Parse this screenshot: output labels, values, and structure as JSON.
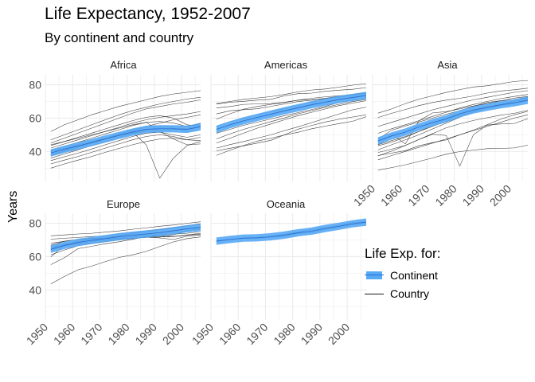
{
  "title": "Life Expectancy, 1952-2007",
  "subtitle": "By continent and country",
  "colors": {
    "continent": "#56a9f5",
    "country": "#1a1a1a",
    "grid": "#ebebeb"
  },
  "chart_data": {
    "type": "line",
    "facets": [
      "Africa",
      "Americas",
      "Asia",
      "Europe",
      "Oceania"
    ],
    "ylabel": "Years",
    "xlabel": "",
    "x": [
      1952,
      1957,
      1962,
      1967,
      1972,
      1977,
      1982,
      1987,
      1992,
      1997,
      2002,
      2007
    ],
    "xlim": [
      1950,
      2007
    ],
    "ylim": [
      22,
      86
    ],
    "x_ticks": [
      "1950",
      "1960",
      "1970",
      "1980",
      "1990",
      "2000"
    ],
    "y_ticks": [
      "40",
      "60",
      "80"
    ],
    "legend": {
      "title": "Life Exp. for:",
      "continent_label": "Continent",
      "country_label": "Country",
      "position": "right"
    },
    "series": [
      {
        "name": "Africa",
        "continent": [
          39.1,
          41.3,
          43.3,
          45.3,
          47.5,
          49.6,
          51.6,
          53.3,
          53.6,
          53.6,
          53.3,
          54.8
        ],
        "countries": [
          [
            30.0,
            32.5,
            34.8,
            37.0,
            39.5,
            41.8,
            44.0,
            46.0,
            47.5,
            48.0,
            47.0,
            48.5
          ],
          [
            32.5,
            34.8,
            37.0,
            39.5,
            42.0,
            44.5,
            47.0,
            49.0,
            50.0,
            49.0,
            47.0,
            46.5
          ],
          [
            34.5,
            36.8,
            39.0,
            41.5,
            44.0,
            46.5,
            49.0,
            51.0,
            51.5,
            50.0,
            48.5,
            50.0
          ],
          [
            36.0,
            38.5,
            41.0,
            43.5,
            46.0,
            48.5,
            51.0,
            53.0,
            54.5,
            55.0,
            55.0,
            56.5
          ],
          [
            37.5,
            40.0,
            42.5,
            45.0,
            47.5,
            50.0,
            52.5,
            54.5,
            55.5,
            54.0,
            52.0,
            53.0
          ],
          [
            39.0,
            41.5,
            43.5,
            45.5,
            47.5,
            49.5,
            51.0,
            52.0,
            52.5,
            53.0,
            54.0,
            55.5
          ],
          [
            40.5,
            43.0,
            45.5,
            48.0,
            50.5,
            53.0,
            55.5,
            57.5,
            58.0,
            57.0,
            55.0,
            57.0
          ],
          [
            42.0,
            44.5,
            47.0,
            49.5,
            52.0,
            54.5,
            57.0,
            59.0,
            60.5,
            61.5,
            62.5,
            64.0
          ],
          [
            43.5,
            46.0,
            48.5,
            51.0,
            53.5,
            56.0,
            58.5,
            60.5,
            61.5,
            60.0,
            56.0,
            55.0
          ],
          [
            45.0,
            48.0,
            51.0,
            54.0,
            57.0,
            60.0,
            63.0,
            65.5,
            67.0,
            68.5,
            69.5,
            71.0
          ],
          [
            47.0,
            50.0,
            53.0,
            56.0,
            59.0,
            62.0,
            64.5,
            66.5,
            68.5,
            70.0,
            71.5,
            72.5
          ],
          [
            52.0,
            56.0,
            59.0,
            62.0,
            64.5,
            67.0,
            69.0,
            71.0,
            73.0,
            74.5,
            75.5,
            76.5
          ],
          [
            44.0,
            46.0,
            48.0,
            50.0,
            52.0,
            54.0,
            56.0,
            57.5,
            52.0,
            47.5,
            44.0,
            44.5
          ],
          [
            40.0,
            42.0,
            44.0,
            46.0,
            48.0,
            50.0,
            51.5,
            44.0,
            24.0,
            36.0,
            43.5,
            46.0
          ],
          [
            38.0,
            40.5,
            43.0,
            45.5,
            48.0,
            50.5,
            53.0,
            55.0,
            57.0,
            59.0,
            60.5,
            62.0
          ]
        ]
      },
      {
        "name": "Americas",
        "continent": [
          53.3,
          56.0,
          58.4,
          60.4,
          62.4,
          64.4,
          66.2,
          68.1,
          69.6,
          71.2,
          72.4,
          73.6
        ],
        "countries": [
          [
            37.6,
            40.7,
            43.6,
            46.2,
            48.0,
            49.9,
            51.5,
            53.6,
            55.2,
            56.7,
            58.1,
            60.9
          ],
          [
            40.4,
            41.9,
            43.4,
            45.0,
            46.7,
            50.0,
            53.4,
            55.6,
            57.7,
            59.3,
            60.7,
            62.0
          ],
          [
            42.0,
            44.1,
            46.0,
            48.0,
            50.0,
            52.5,
            54.8,
            57.3,
            59.9,
            62.5,
            65.0,
            66.6
          ],
          [
            47.5,
            50.5,
            53.3,
            55.6,
            57.9,
            60.1,
            62.6,
            64.5,
            66.5,
            68.3,
            69.9,
            71.2
          ],
          [
            50.9,
            53.3,
            55.7,
            57.6,
            59.5,
            61.5,
            63.3,
            65.2,
            67.1,
            69.4,
            71.0,
            72.4
          ],
          [
            55.2,
            57.8,
            60.1,
            62.1,
            63.9,
            65.8,
            67.6,
            69.6,
            71.5,
            73.1,
            74.0,
            75.0
          ],
          [
            59.4,
            62.6,
            65.4,
            67.0,
            68.3,
            69.4,
            70.7,
            71.0,
            71.8,
            72.5,
            73.7,
            74.8
          ],
          [
            62.5,
            64.4,
            65.1,
            65.6,
            67.1,
            68.5,
            69.9,
            70.8,
            71.9,
            73.3,
            74.3,
            75.3
          ],
          [
            68.4,
            69.5,
            70.1,
            70.8,
            71.3,
            73.4,
            74.7,
            75.0,
            76.1,
            76.8,
            77.3,
            78.3
          ],
          [
            68.8,
            70.0,
            71.3,
            72.1,
            72.9,
            74.2,
            75.8,
            76.9,
            77.5,
            78.6,
            79.8,
            80.7
          ],
          [
            66.1,
            67.0,
            68.3,
            68.5,
            68.7,
            69.5,
            70.8,
            71.9,
            72.8,
            73.4,
            74.1,
            75.5
          ],
          [
            45.0,
            48.0,
            51.0,
            54.0,
            56.5,
            59.0,
            61.5,
            63.5,
            65.5,
            67.5,
            69.0,
            70.5
          ]
        ]
      },
      {
        "name": "Asia",
        "continent": [
          46.3,
          49.3,
          51.6,
          54.7,
          57.3,
          59.6,
          62.6,
          64.9,
          66.5,
          68.0,
          69.2,
          70.7
        ],
        "countries": [
          [
            28.8,
            30.3,
            32.0,
            34.0,
            36.1,
            38.4,
            39.9,
            40.8,
            41.7,
            41.8,
            42.1,
            43.8
          ],
          [
            37.5,
            39.0,
            40.5,
            43.4,
            45.3,
            46.9,
            50.0,
            52.8,
            56.0,
            59.4,
            62.0,
            64.1
          ],
          [
            39.4,
            41.4,
            43.6,
            47.2,
            50.3,
            49.6,
            31.2,
            50.0,
            55.8,
            56.5,
            56.8,
            59.7
          ],
          [
            44.0,
            50.5,
            44.5,
            58.4,
            63.1,
            63.9,
            65.5,
            67.3,
            68.7,
            70.4,
            72.0,
            73.0
          ],
          [
            37.4,
            40.2,
            43.6,
            47.2,
            50.7,
            54.2,
            56.6,
            58.6,
            60.2,
            61.8,
            62.9,
            64.7
          ],
          [
            43.4,
            45.6,
            48.5,
            52.0,
            55.6,
            59.5,
            62.0,
            64.6,
            66.2,
            67.5,
            69.0,
            71.6
          ],
          [
            50.9,
            53.6,
            56.0,
            58.5,
            61.0,
            63.5,
            66.1,
            68.2,
            70.0,
            71.7,
            73.0,
            74.2
          ],
          [
            63.0,
            65.5,
            68.7,
            71.4,
            73.4,
            75.4,
            77.1,
            78.7,
            79.4,
            80.7,
            82.0,
            82.6
          ],
          [
            60.4,
            62.9,
            65.2,
            67.5,
            69.4,
            70.8,
            71.9,
            73.3,
            75.0,
            76.3,
            77.0,
            78.0
          ],
          [
            47.5,
            52.7,
            55.3,
            57.7,
            60.0,
            62.3,
            64.5,
            67.1,
            69.4,
            70.5,
            71.0,
            72.5
          ],
          [
            35.0,
            37.5,
            40.0,
            42.5,
            45.0,
            47.5,
            50.0,
            52.5,
            55.0,
            57.5,
            60.0,
            62.0
          ],
          [
            41.0,
            44.0,
            47.0,
            50.0,
            53.5,
            57.0,
            60.5,
            63.5,
            66.0,
            68.0,
            70.0,
            72.0
          ],
          [
            55.0,
            57.5,
            60.0,
            62.5,
            65.0,
            67.0,
            69.0,
            71.0,
            72.5,
            74.0,
            75.5,
            76.5
          ],
          [
            44.0,
            46.5,
            49.0,
            52.0,
            55.0,
            58.0,
            61.0,
            64.0,
            66.5,
            68.5,
            70.5,
            72.5
          ]
        ]
      },
      {
        "name": "Europe",
        "continent": [
          64.4,
          66.7,
          68.5,
          69.7,
          70.8,
          71.9,
          72.8,
          73.6,
          74.4,
          75.5,
          76.7,
          77.6
        ],
        "countries": [
          [
            43.6,
            48.1,
            52.1,
            54.3,
            57.0,
            59.5,
            61.0,
            63.1,
            66.1,
            68.8,
            70.8,
            71.8
          ],
          [
            55.2,
            59.3,
            64.8,
            66.2,
            67.7,
            68.9,
            70.4,
            72.0,
            71.6,
            73.0,
            75.7,
            76.4
          ],
          [
            59.8,
            66.9,
            69.5,
            70.4,
            70.9,
            70.8,
            71.0,
            71.6,
            71.2,
            70.3,
            72.2,
            73.0
          ],
          [
            61.0,
            64.0,
            66.5,
            68.0,
            69.0,
            70.0,
            70.8,
            71.8,
            72.5,
            72.0,
            72.8,
            73.5
          ],
          [
            64.0,
            66.5,
            67.5,
            68.0,
            69.5,
            70.5,
            71.5,
            72.5,
            73.5,
            74.5,
            75.5,
            77.0
          ],
          [
            66.8,
            69.2,
            70.4,
            71.0,
            71.4,
            72.5,
            73.8,
            74.8,
            76.0,
            77.1,
            78.4,
            79.4
          ],
          [
            68.0,
            69.2,
            70.3,
            70.8,
            71.0,
            72.5,
            74.0,
            75.0,
            76.2,
            77.3,
            78.5,
            79.8
          ],
          [
            70.5,
            71.0,
            71.5,
            72.0,
            72.5,
            73.5,
            74.5,
            75.5,
            76.5,
            77.5,
            78.5,
            79.5
          ],
          [
            72.5,
            73.0,
            73.6,
            74.0,
            74.7,
            75.4,
            76.4,
            77.2,
            78.2,
            79.0,
            80.0,
            80.9
          ],
          [
            66.0,
            67.0,
            68.0,
            69.0,
            70.0,
            71.0,
            72.0,
            72.5,
            73.0,
            73.5,
            74.0,
            75.0
          ],
          [
            65.0,
            67.5,
            69.0,
            69.5,
            70.0,
            70.5,
            71.0,
            71.5,
            71.8,
            72.0,
            73.0,
            74.0
          ]
        ]
      },
      {
        "name": "Oceania",
        "continent": [
          69.3,
          70.3,
          71.1,
          71.3,
          71.9,
          72.9,
          74.3,
          75.3,
          76.9,
          78.2,
          79.7,
          80.7
        ],
        "countries": [
          [
            69.1,
            70.3,
            70.9,
            71.1,
            71.9,
            73.5,
            74.7,
            76.3,
            77.6,
            78.8,
            80.4,
            81.2
          ],
          [
            69.4,
            70.3,
            71.2,
            71.5,
            71.9,
            72.2,
            73.8,
            74.3,
            76.3,
            77.6,
            79.1,
            80.2
          ]
        ]
      }
    ]
  }
}
